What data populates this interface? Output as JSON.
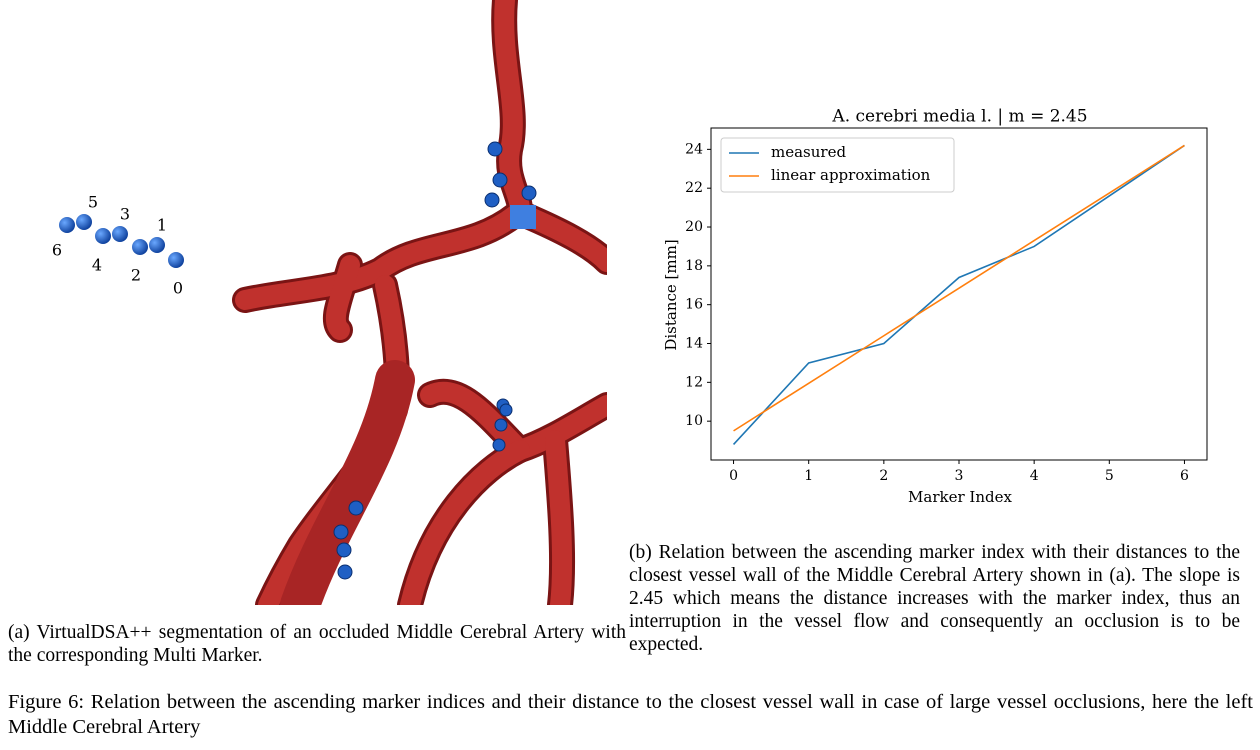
{
  "left_panel": {
    "marker_labels": [
      "0",
      "1",
      "2",
      "3",
      "4",
      "5",
      "6"
    ],
    "caption": "(a) VirtualDSA++ segmentation of an occluded Middle Cerebral Artery with the corresponding Multi Marker."
  },
  "right_panel": {
    "caption": "(b) Relation between the ascending marker index with their distances to the closest vessel wall of the Middle Cerebral Artery shown in (a).  The slope is 2.45 which means the distance increases with the marker index, thus an interruption in the vessel flow and consequently an occlusion is to be expected."
  },
  "figure_caption": "Figure 6: Relation between the ascending marker indices and their distance to the closest vessel wall in case of large vessel occlusions, here the left Middle Cerebral Artery",
  "chart_data": {
    "type": "line",
    "title": "A. cerebri media l. | m = 2.45",
    "x_label": "Marker Index",
    "y_label": "Distance [mm]",
    "x": [
      0,
      1,
      2,
      3,
      4,
      5,
      6
    ],
    "series": [
      {
        "name": "measured",
        "color": "#1f77b4",
        "values": [
          8.8,
          13.0,
          14.0,
          17.4,
          19.0,
          21.6,
          24.2
        ]
      },
      {
        "name": "linear approximation",
        "color": "#ff7f0e",
        "values": [
          9.5,
          11.95,
          14.4,
          16.85,
          19.3,
          21.75,
          24.2
        ]
      }
    ],
    "xlim": [
      -0.3,
      6.3
    ],
    "ylim": [
      8.0,
      25.1
    ],
    "xticks": [
      0,
      1,
      2,
      3,
      4,
      5,
      6
    ],
    "yticks": [
      10,
      12,
      14,
      16,
      18,
      20,
      22,
      24
    ],
    "legend": "upper left",
    "grid": false
  }
}
